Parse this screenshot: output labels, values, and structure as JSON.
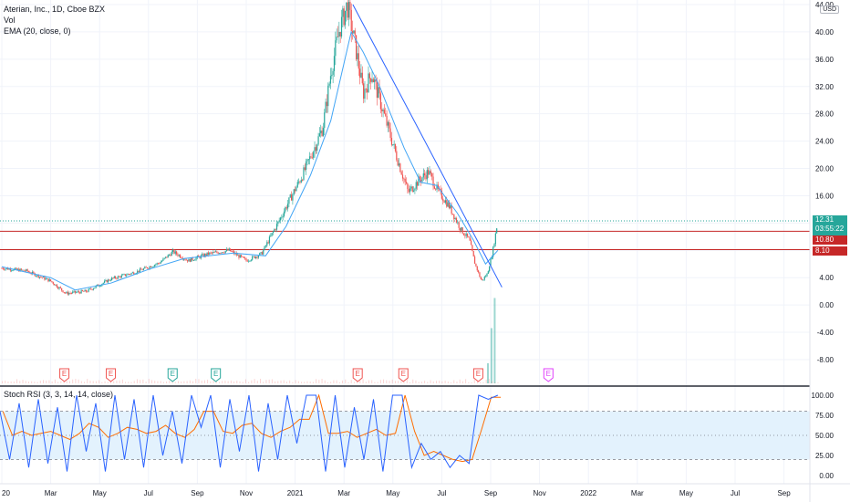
{
  "header": {
    "symbol_line": "Aterian, Inc., 1D, Cboe BZX",
    "vol_label": "Vol",
    "ema_label": "EMA (20, close, 0)",
    "currency": "USD"
  },
  "price_tags": [
    {
      "value": "12.31",
      "sub": "03:55:22",
      "color": "#26a69a"
    },
    {
      "value": "10.80",
      "color": "#c62828"
    },
    {
      "value": "8.10",
      "color": "#c62828"
    }
  ],
  "stoch": {
    "label": "Stoch RSI (3, 3, 14, 14, close)",
    "upper_band": 80,
    "lower_band": 20,
    "ticks": [
      "100.00",
      "75.00",
      "50.00",
      "25.00",
      "0.00"
    ],
    "colors": {
      "k": "#2962ff",
      "d": "#ff6d00",
      "band_fill": "#e3f2fd"
    }
  },
  "colors": {
    "up": "#26a69a",
    "down": "#ef5350",
    "ema": "#42a5f5",
    "trendline": "#2962ff",
    "hline": "#c62828",
    "grid": "#f0f3fa"
  },
  "earnings_markers": [
    {
      "label": "E",
      "date": "2020-03-18",
      "kind": "past-miss"
    },
    {
      "label": "E",
      "date": "2020-05-15",
      "kind": "past-miss"
    },
    {
      "label": "E",
      "date": "2020-07-31",
      "kind": "past-beat"
    },
    {
      "label": "E",
      "date": "2020-09-24",
      "kind": "past-beat"
    },
    {
      "label": "E",
      "date": "2021-03-18",
      "kind": "past-miss"
    },
    {
      "label": "E",
      "date": "2021-05-14",
      "kind": "past-miss"
    },
    {
      "label": "E",
      "date": "2021-08-16",
      "kind": "past-miss"
    },
    {
      "label": "E",
      "date": "2021-11-12",
      "kind": "upcoming"
    }
  ],
  "chart_data": {
    "type": "candlestick",
    "title": "Aterian, Inc., 1D, Cboe BZX",
    "x_ticks": [
      "20",
      "Mar",
      "May",
      "Jul",
      "Sep",
      "Nov",
      "2021",
      "Mar",
      "May",
      "Jul",
      "Sep",
      "Nov",
      "2022",
      "Mar",
      "May",
      "Jul",
      "Sep"
    ],
    "y_ticks": [
      "44.00",
      "40.00",
      "36.00",
      "32.00",
      "28.00",
      "24.00",
      "20.00",
      "16.00",
      "12.00",
      "8.00",
      "4.00",
      "0.00",
      "-4.00",
      "-8.00"
    ],
    "ylim": [
      -10,
      44
    ],
    "price_path": [
      [
        "2020-01-01",
        5.4
      ],
      [
        "2020-02-01",
        5.0
      ],
      [
        "2020-03-01",
        3.5
      ],
      [
        "2020-03-20",
        1.7
      ],
      [
        "2020-04-15",
        2.0
      ],
      [
        "2020-05-15",
        3.8
      ],
      [
        "2020-06-15",
        4.8
      ],
      [
        "2020-07-15",
        6.2
      ],
      [
        "2020-08-01",
        7.8
      ],
      [
        "2020-08-20",
        6.5
      ],
      [
        "2020-09-15",
        7.5
      ],
      [
        "2020-10-10",
        8.0
      ],
      [
        "2020-11-01",
        6.5
      ],
      [
        "2020-11-20",
        7.5
      ],
      [
        "2020-12-10",
        12.0
      ],
      [
        "2020-12-25",
        15.5
      ],
      [
        "2021-01-10",
        19.0
      ],
      [
        "2021-01-25",
        23.0
      ],
      [
        "2021-02-05",
        26.0
      ],
      [
        "2021-02-15",
        34.0
      ],
      [
        "2021-02-25",
        40.0
      ],
      [
        "2021-03-05",
        44.0
      ],
      [
        "2021-03-15",
        38.0
      ],
      [
        "2021-03-25",
        31.0
      ],
      [
        "2021-04-05",
        34.0
      ],
      [
        "2021-04-20",
        28.0
      ],
      [
        "2021-05-05",
        22.0
      ],
      [
        "2021-05-20",
        16.5
      ],
      [
        "2021-06-05",
        18.5
      ],
      [
        "2021-06-15",
        19.5
      ],
      [
        "2021-06-25",
        17.0
      ],
      [
        "2021-07-10",
        14.5
      ],
      [
        "2021-07-25",
        11.0
      ],
      [
        "2021-08-05",
        9.5
      ],
      [
        "2021-08-12",
        6.0
      ],
      [
        "2021-08-20",
        3.5
      ],
      [
        "2021-08-27",
        4.5
      ],
      [
        "2021-09-03",
        7.5
      ],
      [
        "2021-09-08",
        11.0
      ],
      [
        "2021-09-10",
        12.31
      ]
    ],
    "ema_20": [
      [
        "2020-01-01",
        5.6
      ],
      [
        "2020-03-01",
        4.0
      ],
      [
        "2020-04-01",
        2.2
      ],
      [
        "2020-05-15",
        3.2
      ],
      [
        "2020-07-01",
        5.2
      ],
      [
        "2020-08-15",
        6.8
      ],
      [
        "2020-10-15",
        7.6
      ],
      [
        "2020-11-25",
        7.2
      ],
      [
        "2020-12-20",
        11.5
      ],
      [
        "2021-01-20",
        19.0
      ],
      [
        "2021-02-15",
        27.0
      ],
      [
        "2021-03-10",
        40.0
      ],
      [
        "2021-03-25",
        37.0
      ],
      [
        "2021-04-15",
        32.0
      ],
      [
        "2021-05-15",
        23.0
      ],
      [
        "2021-06-05",
        18.0
      ],
      [
        "2021-06-25",
        17.5
      ],
      [
        "2021-07-20",
        13.5
      ],
      [
        "2021-08-10",
        9.5
      ],
      [
        "2021-08-25",
        6.0
      ],
      [
        "2021-09-10",
        8.0
      ]
    ],
    "horizontal_lines": [
      10.8,
      8.1
    ],
    "last_price_line": 12.31,
    "trendline": [
      [
        "2021-03-12",
        44.0
      ],
      [
        "2021-09-15",
        2.6
      ]
    ],
    "volume_spike": [
      [
        "2021-08-28",
        0.2
      ],
      [
        "2021-09-02",
        0.55
      ],
      [
        "2021-09-06",
        0.85
      ]
    ],
    "stoch_rsi_k": [
      80,
      20,
      90,
      10,
      95,
      15,
      85,
      5,
      100,
      30,
      90,
      5,
      100,
      20,
      95,
      10,
      100,
      25,
      80,
      15,
      100,
      60,
      100,
      10,
      95,
      30,
      100,
      5,
      90,
      20,
      100,
      40,
      100,
      100,
      5,
      100,
      10,
      85,
      20,
      95,
      5,
      100,
      100,
      10,
      40,
      20,
      30,
      10,
      25,
      15,
      100,
      95,
      100
    ]
  }
}
